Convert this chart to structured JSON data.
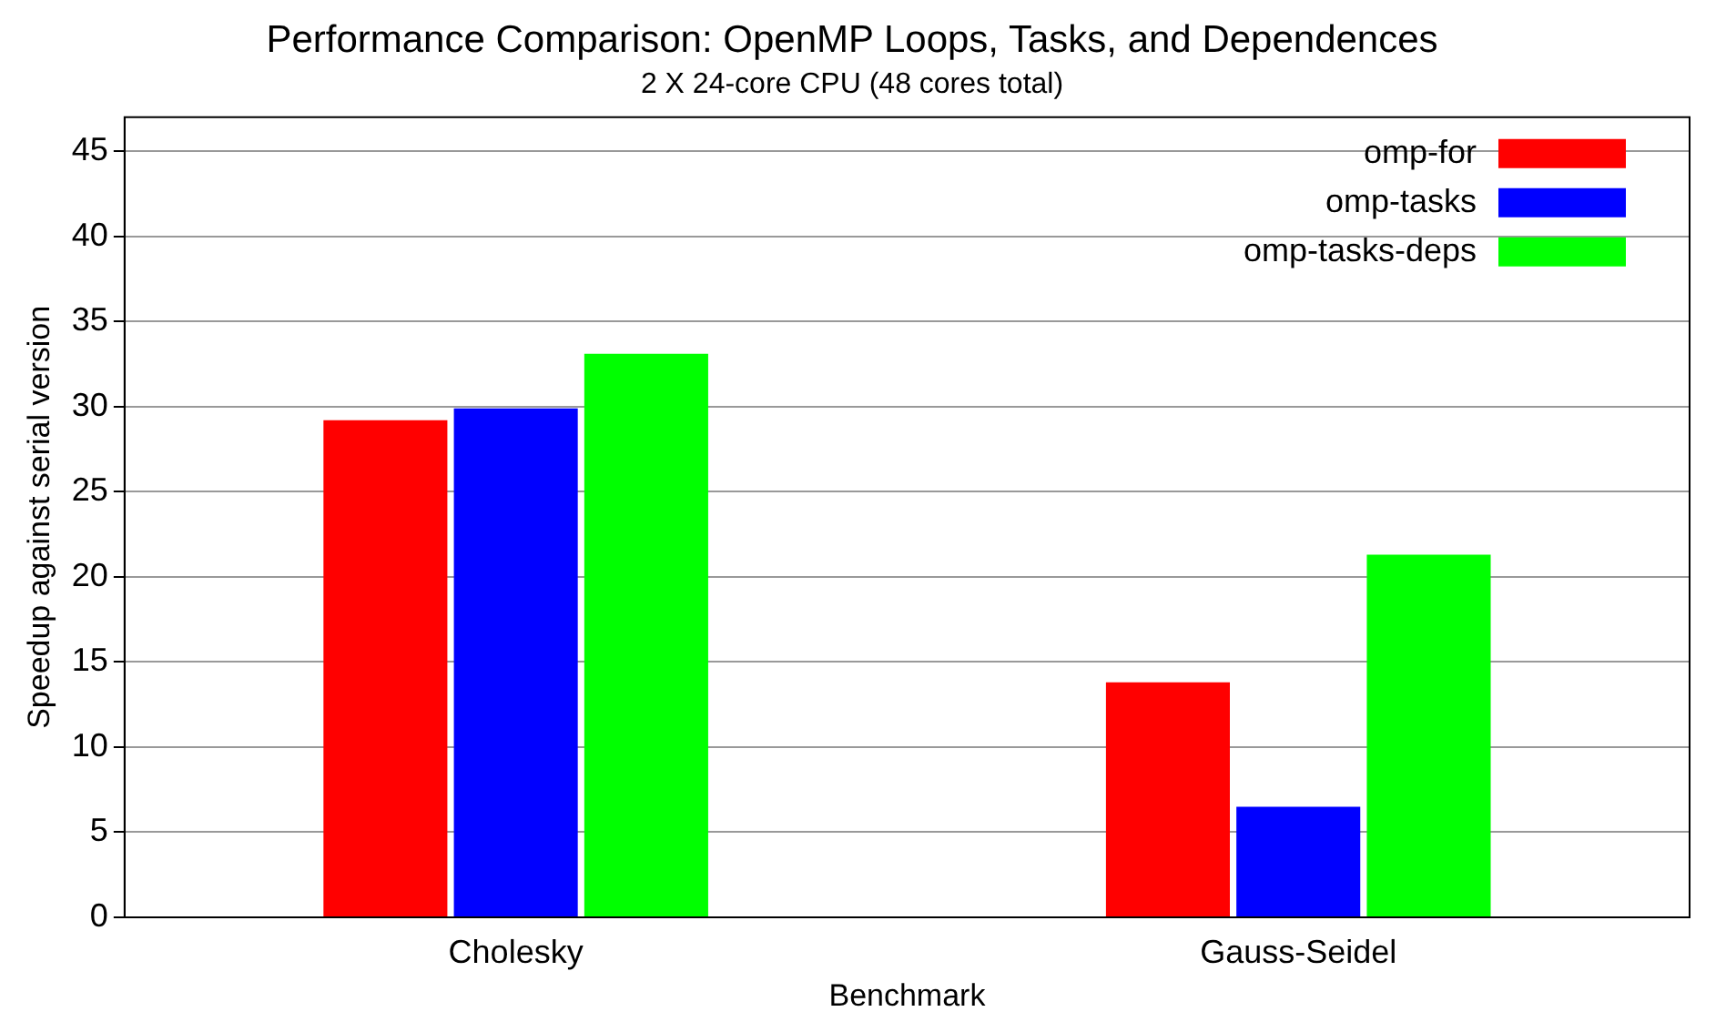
{
  "chart_data": {
    "type": "bar",
    "title": "Performance Comparison: OpenMP Loops, Tasks, and Dependences",
    "subtitle": "2 X 24-core CPU (48 cores total)",
    "xlabel": "Benchmark",
    "ylabel": "Speedup against serial version",
    "categories": [
      "Cholesky",
      "Gauss-Seidel"
    ],
    "series": [
      {
        "name": "omp-for",
        "color": "#ff0000",
        "values": [
          29.2,
          13.8
        ]
      },
      {
        "name": "omp-tasks",
        "color": "#0000ff",
        "values": [
          29.9,
          6.5
        ]
      },
      {
        "name": "omp-tasks-deps",
        "color": "#00ff00",
        "values": [
          33.1,
          21.3
        ]
      }
    ],
    "ylim": [
      0,
      47
    ],
    "yticks": [
      0,
      5,
      10,
      15,
      20,
      25,
      30,
      35,
      40,
      45
    ],
    "grid": "y",
    "legend": "top right"
  }
}
